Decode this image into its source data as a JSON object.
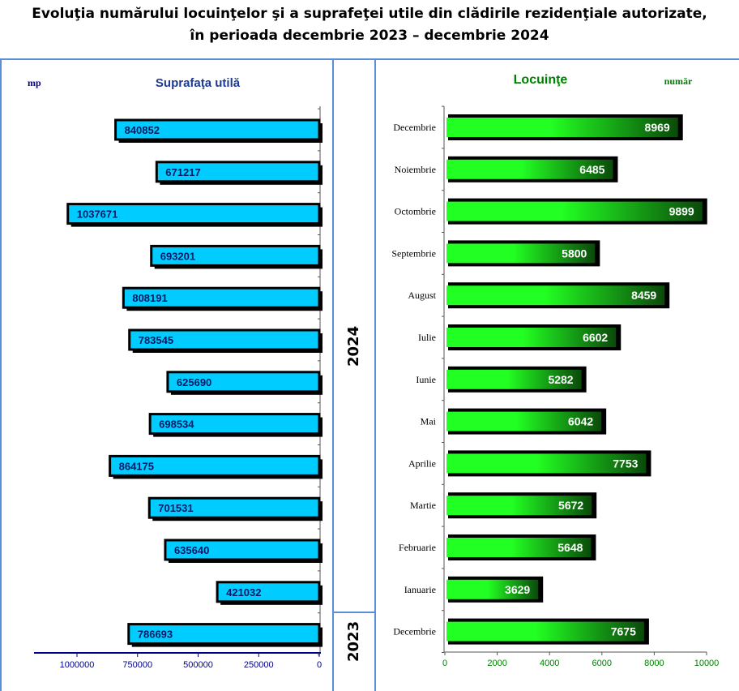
{
  "title": {
    "line1": "Evoluţia numărului locuinţelor şi a suprafeţei utile din clădirile rezidenţiale autorizate,",
    "line2": "în perioada decembrie 2023 – decembrie 2024"
  },
  "year_labels": {
    "y2024": "2024",
    "y2023": "2023"
  },
  "colors": {
    "frame": "#5b8dd9",
    "left_bar": "#00ccff",
    "right_bar_light": "#22ff22",
    "right_bar_dark": "#0a4a0a",
    "left_title": "#1f3a93",
    "right_title": "#008000",
    "unit_left": "#00008b"
  },
  "chart_data": [
    {
      "type": "bar",
      "orientation": "horizontal",
      "direction": "right-to-left",
      "title": "Suprafaţa utilă",
      "unit": "mp",
      "categories": [
        "Decembrie",
        "Noiembrie",
        "Octombrie",
        "Septembrie",
        "August",
        "Iulie",
        "Iunie",
        "Mai",
        "Aprilie",
        "Martie",
        "Februarie",
        "Ianuarie",
        "Decembrie"
      ],
      "values": [
        840852,
        671217,
        1037671,
        693201,
        808191,
        783545,
        625690,
        698534,
        864175,
        701531,
        635640,
        421032,
        786693
      ],
      "labels": [
        "840852",
        "671217",
        "1037671",
        "693201",
        "808191",
        "783545",
        "625690",
        "698534",
        "864175",
        "701531",
        "635640",
        "421032",
        "786693"
      ],
      "xlim": [
        0,
        1150000
      ],
      "ticks": [
        1000000,
        750000,
        500000,
        250000,
        0
      ],
      "tick_labels": [
        "1000000",
        "750000",
        "500000",
        "250000",
        "0"
      ]
    },
    {
      "type": "bar",
      "orientation": "horizontal",
      "title": "Locuinţe",
      "unit": "număr",
      "categories": [
        "Decembrie",
        "Noiembrie",
        "Octombrie",
        "Septembrie",
        "August",
        "Iulie",
        "Iunie",
        "Mai",
        "Aprilie",
        "Martie",
        "Februarie",
        "Ianuarie",
        "Decembrie"
      ],
      "values": [
        8969,
        6485,
        9899,
        5800,
        8459,
        6602,
        5282,
        6042,
        7753,
        5672,
        5648,
        3629,
        7675
      ],
      "labels": [
        "8969",
        "6485",
        "9899",
        "5800",
        "8459",
        "6602",
        "5282",
        "6042",
        "7753",
        "5672",
        "5648",
        "3629",
        "7675"
      ],
      "xlim": [
        0,
        10000
      ],
      "ticks": [
        0,
        2000,
        4000,
        6000,
        8000,
        10000
      ],
      "tick_labels": [
        "0",
        "2000",
        "4000",
        "6000",
        "8000",
        "10000"
      ]
    }
  ]
}
